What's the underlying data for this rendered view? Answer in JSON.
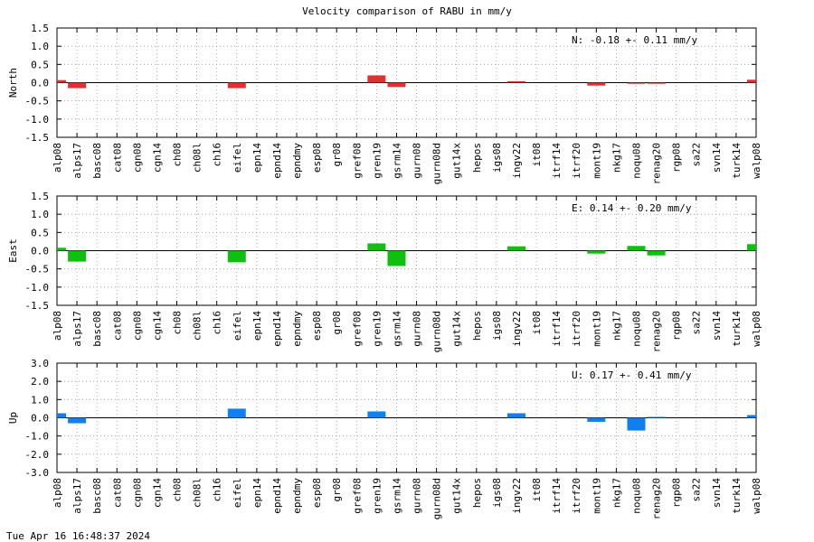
{
  "title": "Velocity comparison of RABU in mm/y",
  "footer": "Tue Apr 16 16:48:37 2024",
  "chart_data": {
    "type": "bar",
    "categories": [
      "alp08",
      "alps17",
      "basc08",
      "cat08",
      "cgn08",
      "cgn14",
      "ch08",
      "ch08l",
      "ch16",
      "eifel",
      "epn14",
      "epnd14",
      "epndmy",
      "esp08",
      "gr08",
      "gref08",
      "gren19",
      "gsrm14",
      "gurn08",
      "gurn08d",
      "gut14x",
      "hepos",
      "igs08",
      "ingv22",
      "it08",
      "itrf14",
      "itrf20",
      "mont19",
      "nkg17",
      "noqu08",
      "renag20",
      "rgp08",
      "sa22",
      "svn14",
      "turk14",
      "walp08"
    ],
    "panels": [
      {
        "ylabel": "North",
        "ylim": [
          -1.5,
          1.5
        ],
        "yticks": [
          "1.5",
          "1.0",
          "0.5",
          "0.0",
          "-0.5",
          "-1.0",
          "-1.5"
        ],
        "annotation": "N:  -0.18 +-  0.11 mm/y",
        "color": "#e03030",
        "values": [
          0.07,
          -0.15,
          null,
          null,
          null,
          null,
          null,
          null,
          null,
          -0.15,
          null,
          null,
          null,
          null,
          null,
          null,
          0.2,
          -0.12,
          null,
          null,
          null,
          null,
          null,
          0.04,
          null,
          null,
          null,
          -0.08,
          null,
          -0.03,
          -0.03,
          null,
          null,
          null,
          null,
          0.08
        ]
      },
      {
        "ylabel": "East",
        "ylim": [
          -1.5,
          1.5
        ],
        "yticks": [
          "1.5",
          "1.0",
          "0.5",
          "0.0",
          "-0.5",
          "-1.0",
          "-1.5"
        ],
        "annotation": "E:   0.14 +-  0.20 mm/y",
        "color": "#10c010",
        "values": [
          0.08,
          -0.3,
          null,
          null,
          null,
          null,
          null,
          null,
          null,
          -0.32,
          null,
          null,
          null,
          null,
          null,
          null,
          0.2,
          -0.42,
          null,
          null,
          null,
          null,
          null,
          0.12,
          null,
          null,
          null,
          -0.08,
          null,
          0.13,
          -0.13,
          null,
          null,
          null,
          null,
          0.18
        ]
      },
      {
        "ylabel": "Up",
        "ylim": [
          -3.0,
          3.0
        ],
        "yticks": [
          "3.0",
          "2.0",
          "1.0",
          "0.0",
          "-1.0",
          "-2.0",
          "-3.0"
        ],
        "annotation": "U:   0.17 +-  0.41 mm/y",
        "color": "#1080f0",
        "values": [
          0.25,
          -0.3,
          null,
          null,
          null,
          null,
          null,
          null,
          null,
          0.5,
          null,
          null,
          null,
          null,
          null,
          null,
          0.35,
          null,
          null,
          null,
          null,
          null,
          null,
          0.25,
          null,
          null,
          null,
          -0.22,
          null,
          -0.7,
          0.05,
          null,
          null,
          null,
          null,
          0.15
        ]
      }
    ]
  }
}
